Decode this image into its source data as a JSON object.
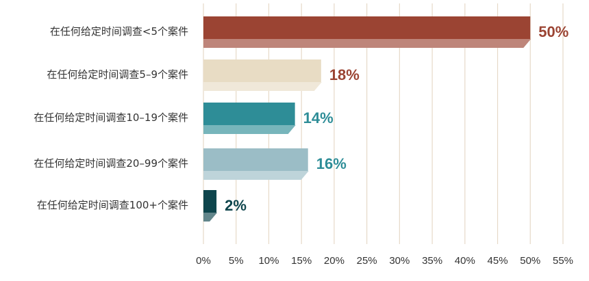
{
  "chart_data": {
    "type": "bar",
    "orientation": "horizontal",
    "categories": [
      "在任何给定时间调查<5个案件",
      "在任何给定时间调查5–9个案件",
      "在任何给定时间调查10–19个案件",
      "在任何给定时间调查20–99个案件",
      "在任何给定时间调查100+个案件"
    ],
    "values": [
      50,
      18,
      14,
      16,
      2
    ],
    "value_labels": [
      "50%",
      "18%",
      "14%",
      "16%",
      "2%"
    ],
    "xlim": [
      0,
      55
    ],
    "x_ticks": [
      "0%",
      "5%",
      "10%",
      "15%",
      "20%",
      "25%",
      "30%",
      "35%",
      "40%",
      "45%",
      "50%",
      "55%"
    ],
    "bar_colors": [
      "#9b4433",
      "#e8dcc4",
      "#2e8d97",
      "#9bbdc6",
      "#0e454c"
    ],
    "label_colors": [
      "#9b4433",
      "#9b4433",
      "#2e8d97",
      "#2e8d97",
      "#0e454c"
    ],
    "grid": true,
    "grid_color": "#e6d9c8",
    "bar_effect": "3d-shadow"
  }
}
